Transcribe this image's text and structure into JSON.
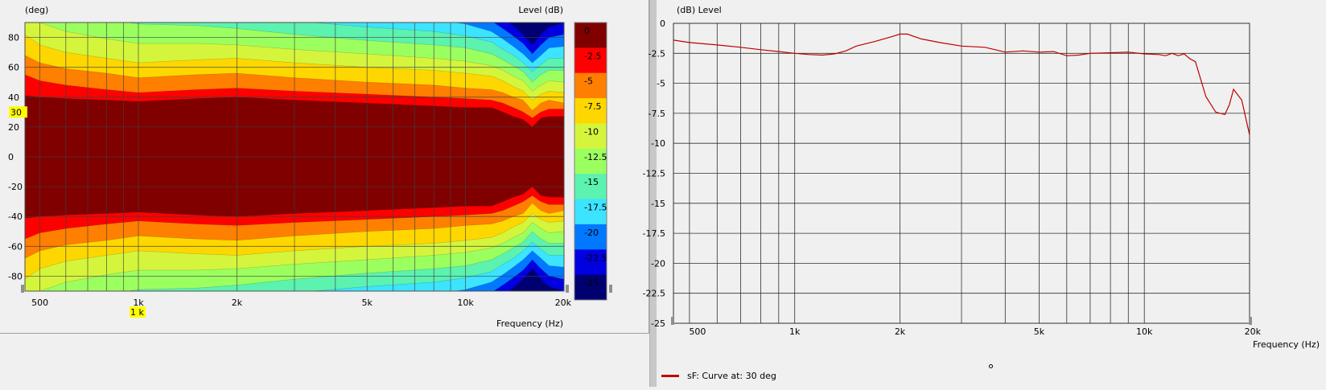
{
  "chart_data": [
    {
      "type": "heatmap",
      "title": "",
      "ylabel": "(deg)",
      "xlabel": "Frequency  (Hz)",
      "colorbar_label": "Level  (dB)",
      "x_scale": "log",
      "xlim": [
        450,
        20000
      ],
      "ylim": [
        -90,
        90
      ],
      "x_ticks": [
        {
          "value": 500,
          "label": "500"
        },
        {
          "value": 1000,
          "label": "1k"
        },
        {
          "value": 2000,
          "label": "2k"
        },
        {
          "value": 5000,
          "label": "5k"
        },
        {
          "value": 10000,
          "label": "10k"
        },
        {
          "value": 20000,
          "label": "20k"
        }
      ],
      "y_ticks": [
        {
          "value": 80,
          "label": "80"
        },
        {
          "value": 60,
          "label": "60"
        },
        {
          "value": 40,
          "label": "40"
        },
        {
          "value": 20,
          "label": "20"
        },
        {
          "value": 0,
          "label": "0"
        },
        {
          "value": -20,
          "label": "-20"
        },
        {
          "value": -40,
          "label": "-40"
        },
        {
          "value": -60,
          "label": "-60"
        },
        {
          "value": -80,
          "label": "-80"
        }
      ],
      "cursor": {
        "angle": 30,
        "angle_label": "30",
        "freq": 1000,
        "freq_label": "1 k"
      },
      "colorbar": [
        {
          "level": 0,
          "label": "0",
          "color": "#800000"
        },
        {
          "level": -2.5,
          "label": "-2.5",
          "color": "#ff0000"
        },
        {
          "level": -5,
          "label": "-5",
          "color": "#ff7f00"
        },
        {
          "level": -7.5,
          "label": "-7.5",
          "color": "#ffd700"
        },
        {
          "level": -10,
          "label": "-10",
          "color": "#d4f53c"
        },
        {
          "level": -12.5,
          "label": "-12.5",
          "color": "#9cff60"
        },
        {
          "level": -15,
          "label": "-15",
          "color": "#5cf2b0"
        },
        {
          "level": -17.5,
          "label": "-17.5",
          "color": "#3ce4ff"
        },
        {
          "level": -20,
          "label": "-20",
          "color": "#0078ff"
        },
        {
          "level": -22.5,
          "label": "-22.5",
          "color": "#0000e0"
        },
        {
          "level": -25,
          "label": "-25",
          "color": "#000070"
        }
      ],
      "contour_boundaries_deg": {
        "freqs": [
          450,
          500,
          600,
          800,
          1000,
          1500,
          2000,
          3000,
          5000,
          8000,
          10000,
          12000,
          13000,
          14000,
          15000,
          16000,
          17000,
          18000,
          20000
        ],
        "bands": [
          {
            "level": -2.5,
            "angle": [
              41,
              40,
              39,
              38,
              37,
              39,
              40,
              38,
              36,
              34,
              33,
              33,
              30,
              27,
              25,
              20,
              26,
              27,
              27
            ]
          },
          {
            "level": -5,
            "angle": [
              55,
              51,
              48,
              45,
              43,
              45,
              46,
              44,
              42,
              40,
              39,
              38,
              36,
              33,
              30,
              26,
              30,
              32,
              32
            ]
          },
          {
            "level": -7.5,
            "angle": [
              68,
              63,
              59,
              56,
              53,
              55,
              56,
              53,
              50,
              48,
              46,
              45,
              43,
              40,
              38,
              31,
              36,
              38,
              36
            ]
          },
          {
            "level": -10,
            "angle": [
              82,
              75,
              70,
              66,
              63,
              65,
              66,
              63,
              60,
              58,
              56,
              54,
              51,
              47,
              44,
              38,
              42,
              44,
              43
            ]
          },
          {
            "level": -12.5,
            "angle": [
              95,
              90,
              84,
              79,
              76,
              76,
              75,
              72,
              69,
              66,
              64,
              61,
              58,
              54,
              51,
              44,
              48,
              51,
              50
            ]
          },
          {
            "level": -15,
            "angle": [
              95,
              95,
              95,
              92,
              89,
              88,
              86,
              82,
              78,
              75,
              73,
              69,
              65,
              61,
              57,
              50,
              55,
              58,
              58
            ]
          },
          {
            "level": -17.5,
            "angle": [
              95,
              95,
              95,
              95,
              95,
              95,
              95,
              91,
              87,
              84,
              81,
              77,
              72,
              68,
              63,
              57,
              62,
              66,
              66
            ]
          },
          {
            "level": -20,
            "angle": [
              95,
              95,
              95,
              95,
              95,
              95,
              95,
              95,
              95,
              92,
              89,
              84,
              79,
              74,
              69,
              63,
              68,
              73,
              74
            ]
          },
          {
            "level": -22.5,
            "angle": [
              95,
              95,
              95,
              95,
              95,
              95,
              95,
              95,
              95,
              95,
              95,
              91,
              86,
              81,
              76,
              69,
              75,
              80,
              82
            ]
          },
          {
            "level": -25,
            "angle": [
              95,
              95,
              95,
              95,
              95,
              95,
              95,
              95,
              95,
              95,
              95,
              95,
              93,
              88,
              82,
              75,
              82,
              87,
              90
            ]
          }
        ]
      }
    },
    {
      "type": "line",
      "title": "",
      "ylabel": "(dB)  Level",
      "xlabel": "Frequency  (Hz)",
      "x_scale": "log",
      "xlim": [
        450,
        20000
      ],
      "ylim": [
        -25,
        0
      ],
      "x_ticks": [
        {
          "value": 500,
          "label": "500"
        },
        {
          "value": 1000,
          "label": "1k"
        },
        {
          "value": 2000,
          "label": "2k"
        },
        {
          "value": 5000,
          "label": "5k"
        },
        {
          "value": 10000,
          "label": "10k"
        },
        {
          "value": 20000,
          "label": "20k"
        }
      ],
      "y_ticks": [
        {
          "value": 0,
          "label": "0"
        },
        {
          "value": -2.5,
          "label": "-2.5"
        },
        {
          "value": -5,
          "label": "-5"
        },
        {
          "value": -7.5,
          "label": "-7.5"
        },
        {
          "value": -10,
          "label": "-10"
        },
        {
          "value": -12.5,
          "label": "-12.5"
        },
        {
          "value": -15,
          "label": "-15"
        },
        {
          "value": -17.5,
          "label": "-17.5"
        },
        {
          "value": -20,
          "label": "-20"
        },
        {
          "value": -22.5,
          "label": "-22.5"
        },
        {
          "value": -25,
          "label": "-25"
        }
      ],
      "series": [
        {
          "name": "sF: Curve at: 30 deg",
          "color": "#c00000",
          "x": [
            450,
            500,
            600,
            700,
            800,
            900,
            1000,
            1100,
            1200,
            1300,
            1400,
            1500,
            1700,
            1900,
            2000,
            2100,
            2300,
            2600,
            3000,
            3500,
            4000,
            4500,
            5000,
            5500,
            6000,
            6500,
            7000,
            8000,
            9000,
            10000,
            11000,
            11500,
            12000,
            12500,
            13000,
            13500,
            14000,
            15000,
            16000,
            17000,
            17500,
            18000,
            19000,
            20000
          ],
          "y": [
            -1.4,
            -1.6,
            -1.8,
            -2.0,
            -2.2,
            -2.35,
            -2.5,
            -2.6,
            -2.65,
            -2.55,
            -2.3,
            -1.9,
            -1.5,
            -1.1,
            -0.9,
            -0.9,
            -1.3,
            -1.6,
            -1.9,
            -2.0,
            -2.4,
            -2.3,
            -2.4,
            -2.35,
            -2.7,
            -2.65,
            -2.5,
            -2.45,
            -2.4,
            -2.55,
            -2.6,
            -2.7,
            -2.5,
            -2.7,
            -2.55,
            -2.95,
            -3.2,
            -6.1,
            -7.4,
            -7.6,
            -6.8,
            -5.5,
            -6.4,
            -9.3
          ]
        }
      ]
    }
  ]
}
